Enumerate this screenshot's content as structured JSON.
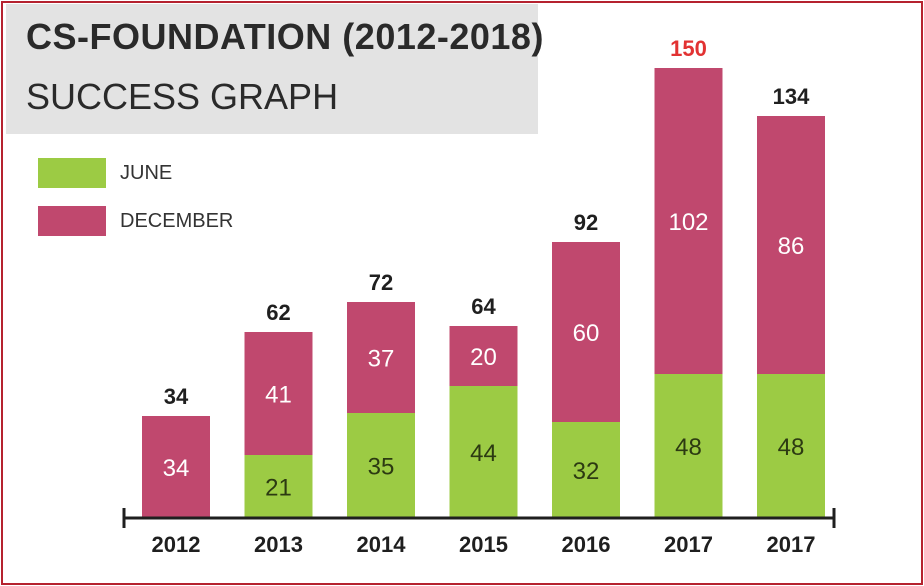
{
  "title": "CS-FOUNDATION (2012-2018)",
  "subtitle": "SUCCESS GRAPH",
  "colors": {
    "june": "#9ccb44",
    "december": "#c0486e",
    "total_text": "#1f1f1f",
    "highlight_total": "#e23232",
    "border": "#b5222f",
    "title_bg": "#e3e3e3"
  },
  "legend": [
    {
      "label": "JUNE",
      "color": "#9ccb44"
    },
    {
      "label": "DECEMBER",
      "color": "#c0486e"
    }
  ],
  "chart_data": {
    "type": "bar",
    "stacked": true,
    "title": "CS-FOUNDATION (2012-2018)",
    "subtitle": "SUCCESS GRAPH",
    "categories": [
      "2012",
      "2013",
      "2014",
      "2015",
      "2016",
      "2017",
      "2017"
    ],
    "series": [
      {
        "name": "JUNE",
        "values": [
          0,
          21,
          35,
          44,
          32,
          48,
          48
        ]
      },
      {
        "name": "DECEMBER",
        "values": [
          34,
          41,
          37,
          20,
          60,
          102,
          86
        ]
      }
    ],
    "segment_labels": {
      "JUNE": [
        "",
        "21",
        "35",
        "44",
        "32",
        "48",
        "48"
      ],
      "DECEMBER": [
        "34",
        "41",
        "37",
        "20",
        "60",
        "102",
        "86"
      ]
    },
    "totals": [
      "34",
      "62",
      "72",
      "64",
      "92",
      "150",
      "134"
    ],
    "highlight_index": 5,
    "legend_position": "top-left",
    "grid": false
  }
}
